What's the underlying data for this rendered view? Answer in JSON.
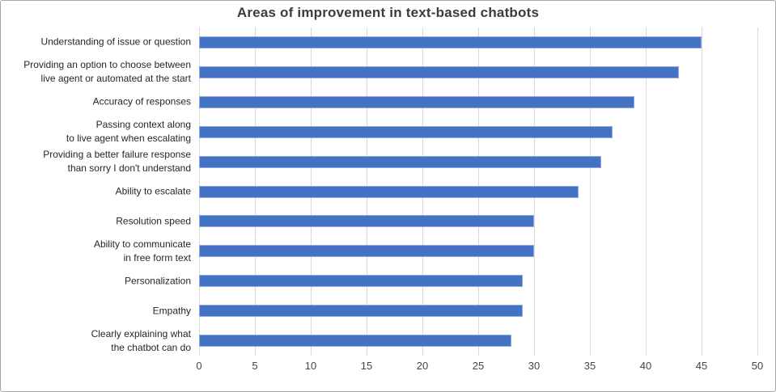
{
  "title": "Areas of improvement in text-based chatbots",
  "colors": {
    "bar_fill": "#4472C4",
    "bar_border": "#8FAADC",
    "gridline": "#D9D9D9",
    "title_text": "#3B3B3B",
    "label_text": "#262626",
    "tick_text": "#464646",
    "frame_border": "#A6A6A6"
  },
  "chart_data": {
    "type": "bar",
    "orientation": "horizontal",
    "title": "Areas of improvement in text-based chatbots",
    "categories": [
      [
        "Understanding of issue or question"
      ],
      [
        "Providing an option to choose between",
        "live agent or automated at the start"
      ],
      [
        "Accuracy of responses"
      ],
      [
        "Passing context along",
        "to live agent when escalating"
      ],
      [
        "Providing a better failure response",
        "than sorry I don't understand"
      ],
      [
        "Ability to escalate"
      ],
      [
        "Resolution speed"
      ],
      [
        "Ability to communicate",
        "in free form text"
      ],
      [
        "Personalization"
      ],
      [
        "Empathy"
      ],
      [
        "Clearly explaining what",
        "the chatbot can do"
      ]
    ],
    "values": [
      45,
      43,
      39,
      37,
      36,
      34,
      30,
      30,
      29,
      29,
      28
    ],
    "xlabel": "",
    "ylabel": "",
    "xlim": [
      0,
      50
    ],
    "xticks": [
      0,
      5,
      10,
      15,
      20,
      25,
      30,
      35,
      40,
      45,
      50
    ],
    "grid": "vertical",
    "legend": "none"
  }
}
